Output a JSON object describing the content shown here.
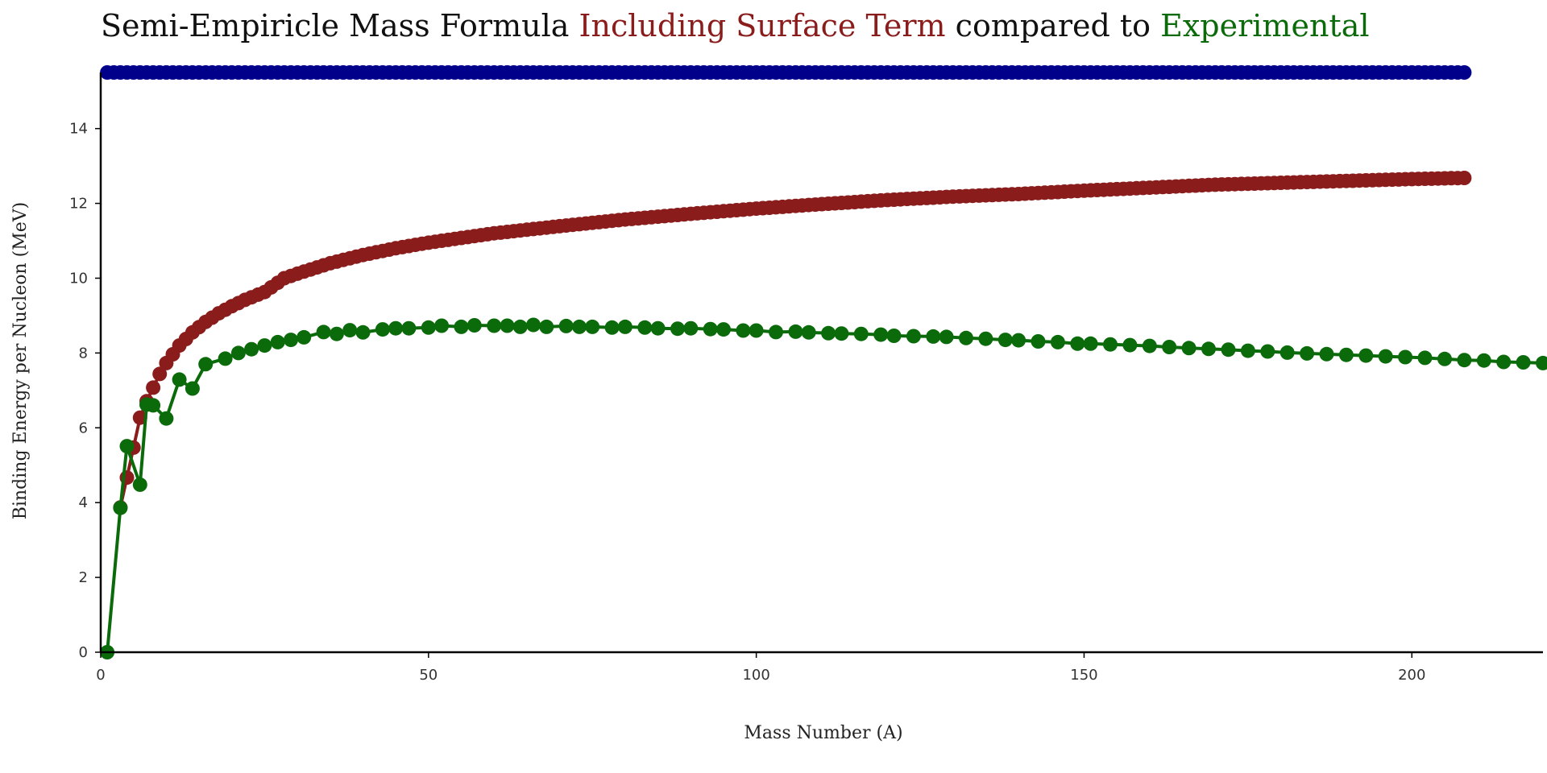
{
  "chart_data": {
    "type": "line",
    "title_parts": [
      {
        "text": "Semi-Empiricle Mass Formula ",
        "color": "#111111"
      },
      {
        "text": "Including Surface Term",
        "color": "#8b1c1c"
      },
      {
        "text": " compared to ",
        "color": "#111111"
      },
      {
        "text": "Experimental",
        "color": "#0b6b0b"
      }
    ],
    "xlabel": "Mass Number (A)",
    "ylabel": "Binding Energy per Nucleon (MeV)",
    "xlim": [
      0,
      220
    ],
    "ylim": [
      0,
      15.5
    ],
    "xticks": [
      0,
      50,
      100,
      150,
      200
    ],
    "yticks": [
      0,
      2,
      4,
      6,
      8,
      10,
      12,
      14
    ],
    "grid": false,
    "series": [
      {
        "color": "#00008b",
        "x_range": [
          1,
          208
        ],
        "value": 15.5,
        "gaps": [
          [
            3,
            4
          ],
          [
            5,
            6
          ],
          [
            133,
            134
          ],
          [
            146,
            147
          ],
          [
            182,
            183
          ]
        ]
      },
      {
        "color": "#8b1c1c",
        "x_range": [
          3,
          208
        ],
        "points": [
          [
            3,
            3.87
          ],
          [
            6,
            6.27
          ],
          [
            7,
            6.71
          ],
          [
            9,
            7.44
          ],
          [
            10,
            7.73
          ],
          [
            12,
            8.2
          ],
          [
            14,
            8.55
          ],
          [
            16,
            8.83
          ],
          [
            18,
            9.06
          ],
          [
            20,
            9.25
          ],
          [
            22,
            9.42
          ],
          [
            25,
            9.63
          ],
          [
            28,
            10.0
          ],
          [
            30,
            10.12
          ],
          [
            35,
            10.4
          ],
          [
            40,
            10.62
          ],
          [
            45,
            10.8
          ],
          [
            50,
            10.95
          ],
          [
            60,
            11.2
          ],
          [
            70,
            11.39
          ],
          [
            80,
            11.57
          ],
          [
            90,
            11.72
          ],
          [
            100,
            11.86
          ],
          [
            110,
            11.98
          ],
          [
            120,
            12.09
          ],
          [
            130,
            12.18
          ],
          [
            140,
            12.25
          ],
          [
            150,
            12.34
          ],
          [
            160,
            12.42
          ],
          [
            170,
            12.5
          ],
          [
            180,
            12.55
          ],
          [
            190,
            12.6
          ],
          [
            200,
            12.65
          ],
          [
            208,
            12.68
          ]
        ],
        "gaps": [
          [
            133,
            134
          ],
          [
            146,
            147
          ],
          [
            182,
            183
          ]
        ]
      },
      {
        "color": "#0b6b0b",
        "points": [
          [
            1,
            0.0
          ],
          [
            3,
            3.86
          ],
          [
            4,
            5.51
          ],
          [
            6,
            4.48
          ],
          [
            7,
            6.62
          ],
          [
            8,
            6.6
          ],
          [
            10,
            6.25
          ],
          [
            12,
            7.29
          ],
          [
            14,
            7.05
          ],
          [
            16,
            7.7
          ],
          [
            19,
            7.85
          ],
          [
            21,
            8.0
          ],
          [
            23,
            8.1
          ],
          [
            25,
            8.2
          ],
          [
            27,
            8.29
          ],
          [
            29,
            8.35
          ],
          [
            31,
            8.42
          ],
          [
            34,
            8.56
          ],
          [
            36,
            8.51
          ],
          [
            38,
            8.61
          ],
          [
            40,
            8.55
          ],
          [
            43,
            8.63
          ],
          [
            45,
            8.66
          ],
          [
            47,
            8.66
          ],
          [
            50,
            8.68
          ],
          [
            52,
            8.73
          ],
          [
            55,
            8.7
          ],
          [
            57,
            8.74
          ],
          [
            60,
            8.73
          ],
          [
            62,
            8.73
          ],
          [
            64,
            8.7
          ],
          [
            66,
            8.75
          ],
          [
            68,
            8.7
          ],
          [
            71,
            8.72
          ],
          [
            73,
            8.7
          ],
          [
            75,
            8.7
          ],
          [
            78,
            8.68
          ],
          [
            80,
            8.7
          ],
          [
            83,
            8.68
          ],
          [
            85,
            8.66
          ],
          [
            88,
            8.65
          ],
          [
            90,
            8.66
          ],
          [
            93,
            8.64
          ],
          [
            95,
            8.63
          ],
          [
            98,
            8.6
          ],
          [
            100,
            8.6
          ],
          [
            103,
            8.56
          ],
          [
            106,
            8.57
          ],
          [
            108,
            8.55
          ],
          [
            111,
            8.53
          ],
          [
            113,
            8.52
          ],
          [
            116,
            8.51
          ],
          [
            119,
            8.49
          ],
          [
            121,
            8.46
          ],
          [
            124,
            8.45
          ],
          [
            127,
            8.44
          ],
          [
            129,
            8.43
          ],
          [
            132,
            8.4
          ],
          [
            135,
            8.38
          ],
          [
            138,
            8.35
          ],
          [
            140,
            8.34
          ],
          [
            143,
            8.31
          ],
          [
            146,
            8.29
          ],
          [
            149,
            8.25
          ],
          [
            151,
            8.25
          ],
          [
            154,
            8.23
          ],
          [
            157,
            8.21
          ],
          [
            160,
            8.19
          ],
          [
            163,
            8.16
          ],
          [
            166,
            8.13
          ],
          [
            169,
            8.11
          ],
          [
            172,
            8.09
          ],
          [
            175,
            8.06
          ],
          [
            178,
            8.04
          ],
          [
            181,
            8.01
          ],
          [
            184,
            7.99
          ],
          [
            187,
            7.97
          ],
          [
            190,
            7.95
          ],
          [
            193,
            7.93
          ],
          [
            196,
            7.91
          ],
          [
            199,
            7.89
          ],
          [
            202,
            7.87
          ],
          [
            205,
            7.84
          ],
          [
            208,
            7.81
          ],
          [
            211,
            7.8
          ],
          [
            214,
            7.76
          ],
          [
            217,
            7.75
          ],
          [
            220,
            7.73
          ]
        ]
      }
    ]
  }
}
